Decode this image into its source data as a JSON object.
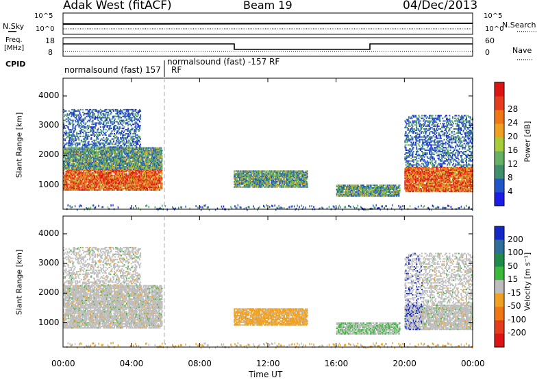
{
  "header": {
    "radar": "Adak West (fitACF)",
    "beam": "Beam 19",
    "date": "04/Dec/2013"
  },
  "noise_panel": {
    "left_label": "N.Sky",
    "right_label": "N.Search",
    "left_ticks": [
      "10^5",
      "10^0"
    ],
    "right_ticks": [
      "10^5",
      "10^0"
    ]
  },
  "freq_panel": {
    "left_label_1": "Freq.",
    "left_label_2": "[MHz]",
    "left_ticks": [
      "18",
      "8"
    ],
    "right_label": "Nave",
    "right_ticks": [
      "60",
      "0"
    ]
  },
  "cpid_panel": {
    "label": "CPID",
    "segments": [
      "normalsound (fast) 157",
      "RF",
      "normalsound (fast) -157 RF"
    ]
  },
  "x_axis": {
    "label": "Time UT",
    "ticks": [
      "00:00",
      "04:00",
      "08:00",
      "12:00",
      "16:00",
      "20:00",
      "00:00"
    ]
  },
  "chart_data": [
    {
      "type": "heatmap",
      "title": "Power",
      "ylabel": "Slant Range [km]",
      "xlabel": "",
      "xlim_hours": [
        0,
        24
      ],
      "ylim": [
        180,
        4600
      ],
      "yticks": [
        1000,
        2000,
        3000,
        4000
      ],
      "colorbar": {
        "label": "Power [dB]",
        "ticks": [
          "4",
          "8",
          "12",
          "16",
          "20",
          "24",
          "28"
        ],
        "colors": [
          "#1c1ce6",
          "#2255c8",
          "#3f8f6a",
          "#66b066",
          "#a6cc3a",
          "#f0a020",
          "#f07814",
          "#e63c1e",
          "#dc1414"
        ]
      },
      "scatter_regions_hours_km": [
        {
          "t": [
            0.0,
            5.8
          ],
          "r": [
            850,
            1550
          ],
          "level": "high"
        },
        {
          "t": [
            0.0,
            5.8
          ],
          "r": [
            1550,
            2300
          ],
          "level": "mid"
        },
        {
          "t": [
            0.0,
            4.5
          ],
          "r": [
            2300,
            3600
          ],
          "level": "low"
        },
        {
          "t": [
            10.0,
            14.3
          ],
          "r": [
            950,
            1500
          ],
          "level": "mid"
        },
        {
          "t": [
            16.0,
            19.7
          ],
          "r": [
            650,
            1050
          ],
          "level": "mid"
        },
        {
          "t": [
            20.0,
            24.0
          ],
          "r": [
            800,
            1650
          ],
          "level": "high"
        },
        {
          "t": [
            20.0,
            24.0
          ],
          "r": [
            1650,
            3400
          ],
          "level": "low"
        }
      ]
    },
    {
      "type": "heatmap",
      "title": "Velocity",
      "ylabel": "Slant Range [km]",
      "xlabel": "Time UT",
      "xlim_hours": [
        0,
        24
      ],
      "ylim": [
        180,
        4600
      ],
      "yticks": [
        1000,
        2000,
        3000,
        4000
      ],
      "colorbar": {
        "label": "Velocity [m s⁻¹]",
        "ticks": [
          "200",
          "100",
          "50",
          "15",
          "-15",
          "-50",
          "-100",
          "-200"
        ],
        "colors": [
          "#1428c8",
          "#2e6e9a",
          "#1f8a4a",
          "#3cb93c",
          "#bdbdbd",
          "#f0a020",
          "#f07814",
          "#e63c1e",
          "#dc1414"
        ]
      }
    }
  ]
}
